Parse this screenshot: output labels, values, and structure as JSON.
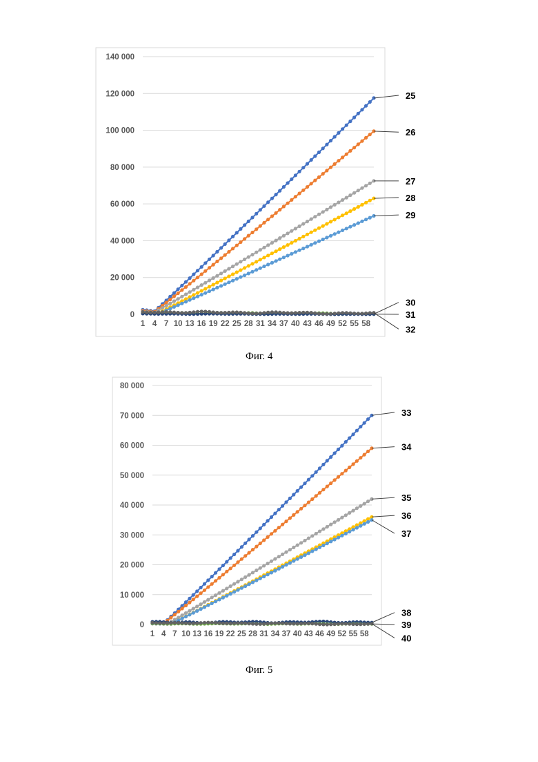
{
  "figures": [
    {
      "caption": "Фиг. 4",
      "chart_data": {
        "type": "line",
        "title": "",
        "xlabel": "",
        "ylabel": "",
        "x": [
          1,
          2,
          3,
          4,
          5,
          6,
          7,
          8,
          9,
          10,
          11,
          12,
          13,
          14,
          15,
          16,
          17,
          18,
          19,
          20,
          21,
          22,
          23,
          24,
          25,
          26,
          27,
          28,
          29,
          30,
          31,
          32,
          33,
          34,
          35,
          36,
          37,
          38,
          39,
          40,
          41,
          42,
          43,
          44,
          45,
          46,
          47,
          48,
          49,
          50,
          51,
          52,
          53,
          54,
          55,
          56,
          57,
          58,
          59,
          60
        ],
        "xtick_labels": [
          "1",
          "4",
          "7",
          "10",
          "13",
          "16",
          "19",
          "22",
          "25",
          "28",
          "31",
          "34",
          "37",
          "40",
          "43",
          "46",
          "49",
          "52",
          "55",
          "58"
        ],
        "ylim": [
          0,
          140000
        ],
        "yticks": [
          0,
          20000,
          40000,
          60000,
          80000,
          100000,
          120000,
          140000
        ],
        "ytick_labels": [
          "0",
          "20 000",
          "40 000",
          "60 000",
          "80 000",
          "100 000",
          "120 000",
          "140 000"
        ],
        "grid": true,
        "series": [
          {
            "name": "25",
            "color": "#4472c4",
            "start": 2500,
            "rise_from": 4,
            "end": 117500,
            "label_y": 119000
          },
          {
            "name": "26",
            "color": "#ed7d31",
            "start": 2000,
            "rise_from": 4,
            "end": 99500,
            "label_y": 99000
          },
          {
            "name": "27",
            "color": "#a5a5a5",
            "start": 1500,
            "rise_from": 4,
            "end": 72500,
            "label_y": 72500
          },
          {
            "name": "28",
            "color": "#ffc000",
            "start": 1000,
            "rise_from": 5,
            "end": 63000,
            "label_y": 63500
          },
          {
            "name": "29",
            "color": "#5b9bd5",
            "start": 500,
            "rise_from": 5,
            "end": 53500,
            "label_y": 54000
          },
          {
            "name": "30",
            "color": "#70ad47",
            "start": 800,
            "rise_from": 60,
            "end": 300,
            "label_y": 6500
          },
          {
            "name": "31",
            "color": "#264478",
            "start": 300,
            "rise_from": 60,
            "end": 100,
            "label_y": 0
          },
          {
            "name": "32",
            "color": "#636363",
            "start": 1300,
            "rise_from": 60,
            "end": 500,
            "label_y": -8000
          }
        ]
      }
    },
    {
      "caption": "Фиг. 5",
      "chart_data": {
        "type": "line",
        "title": "",
        "xlabel": "",
        "ylabel": "",
        "x": [
          1,
          2,
          3,
          4,
          5,
          6,
          7,
          8,
          9,
          10,
          11,
          12,
          13,
          14,
          15,
          16,
          17,
          18,
          19,
          20,
          21,
          22,
          23,
          24,
          25,
          26,
          27,
          28,
          29,
          30,
          31,
          32,
          33,
          34,
          35,
          36,
          37,
          38,
          39,
          40,
          41,
          42,
          43,
          44,
          45,
          46,
          47,
          48,
          49,
          50,
          51,
          52,
          53,
          54,
          55,
          56,
          57,
          58,
          59,
          60
        ],
        "xtick_labels": [
          "1",
          "4",
          "7",
          "10",
          "13",
          "16",
          "19",
          "22",
          "25",
          "28",
          "31",
          "34",
          "37",
          "40",
          "43",
          "46",
          "49",
          "52",
          "55",
          "58"
        ],
        "ylim": [
          0,
          80000
        ],
        "yticks": [
          0,
          10000,
          20000,
          30000,
          40000,
          50000,
          60000,
          70000,
          80000
        ],
        "ytick_labels": [
          "0",
          "10 000",
          "20 000",
          "30 000",
          "40 000",
          "50 000",
          "60 000",
          "70 000",
          "80 000"
        ],
        "grid": true,
        "series": [
          {
            "name": "33",
            "color": "#4472c4",
            "start": 500,
            "rise_from": 4,
            "end": 70000,
            "label_y": 71000
          },
          {
            "name": "34",
            "color": "#ed7d31",
            "start": 500,
            "rise_from": 4,
            "end": 59000,
            "label_y": 59500
          },
          {
            "name": "35",
            "color": "#a5a5a5",
            "start": 300,
            "rise_from": 5,
            "end": 42000,
            "label_y": 42500
          },
          {
            "name": "36",
            "color": "#ffc000",
            "start": 300,
            "rise_from": 6,
            "end": 36000,
            "label_y": 36500
          },
          {
            "name": "37",
            "color": "#5b9bd5",
            "start": 300,
            "rise_from": 6,
            "end": 35000,
            "label_y": 30500
          },
          {
            "name": "38",
            "color": "#264478",
            "start": 700,
            "rise_from": 60,
            "end": 800,
            "label_y": 4000
          },
          {
            "name": "39",
            "color": "#70ad47",
            "start": 300,
            "rise_from": 60,
            "end": 200,
            "label_y": 0
          },
          {
            "name": "40",
            "color": "#636363",
            "start": 600,
            "rise_from": 60,
            "end": 100,
            "label_y": -4500
          }
        ]
      }
    }
  ]
}
